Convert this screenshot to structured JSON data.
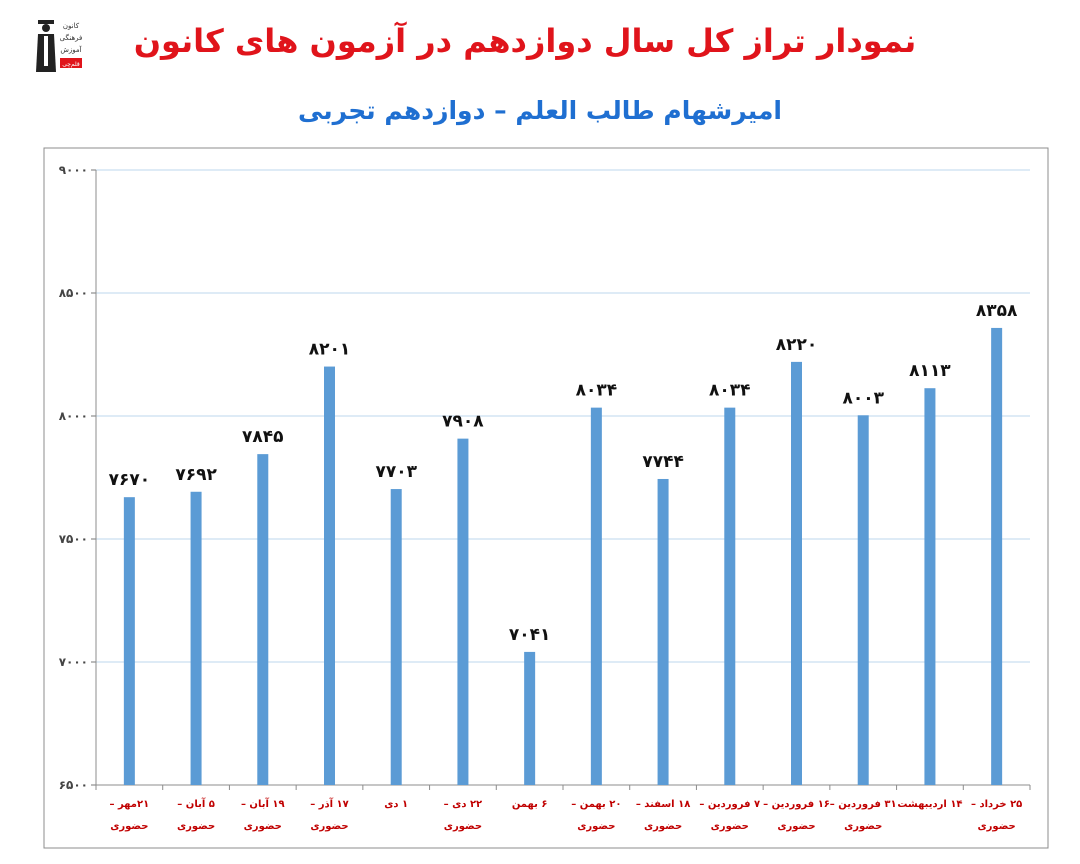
{
  "header": {
    "title": "نمودار تراز کل سال دوازدهم در آزمون های کانون",
    "subtitle": "امیرشهام طالب العلم – دوازدهم تجربی"
  },
  "logo": {
    "icon": "graduate-logo-icon",
    "lines": [
      "کانون",
      "فرهنگی",
      "آموزش"
    ],
    "badge": "قلم‌چی"
  },
  "colors": {
    "title": "#e0141b",
    "subtitle": "#1f6fd1",
    "bar": "#5b9bd5",
    "gridline": "#bdd7ee",
    "category_label": "#c00000"
  },
  "chart_data": {
    "type": "bar",
    "title": "",
    "xlabel": "",
    "ylabel": "",
    "ylim": [
      6500,
      9000
    ],
    "yticks": [
      6500,
      7000,
      7500,
      8000,
      8500,
      9000
    ],
    "ytick_labels": [
      "۶۵۰۰",
      "۷۰۰۰",
      "۷۵۰۰",
      "۸۰۰۰",
      "۸۵۰۰",
      "۹۰۰۰"
    ],
    "grid": true,
    "legend": "none",
    "categories": [
      [
        "۲۱مهر –",
        "حضوری"
      ],
      [
        "۵ آبان –",
        "حضوری"
      ],
      [
        "۱۹ آبان –",
        "حضوری"
      ],
      [
        "۱۷ آذر –",
        "حضوری"
      ],
      [
        "۱ دی",
        ""
      ],
      [
        "۲۲ دی –",
        "حضوری"
      ],
      [
        "۶ بهمن",
        ""
      ],
      [
        "۲۰ بهمن –",
        "حضوری"
      ],
      [
        "۱۸ اسفند –",
        "حضوری"
      ],
      [
        "۷ فروردین –",
        "حضوری"
      ],
      [
        "۱۶ فروردین –",
        "حضوری"
      ],
      [
        "۳۱ فروردین –",
        "حضوری"
      ],
      [
        "۱۴ اردیبهشت",
        ""
      ],
      [
        "۲۵ خرداد –",
        "حضوری"
      ]
    ],
    "values": [
      7670,
      7692,
      7845,
      8201,
      7703,
      7908,
      7041,
      8034,
      7744,
      8034,
      8220,
      8003,
      8113,
      8358
    ],
    "data_labels": [
      "۷۶۷۰",
      "۷۶۹۲",
      "۷۸۴۵",
      "۸۲۰۱",
      "۷۷۰۳",
      "۷۹۰۸",
      "۷۰۴۱",
      "۸۰۳۴",
      "۷۷۴۴",
      "۸۰۳۴",
      "۸۲۲۰",
      "۸۰۰۳",
      "۸۱۱۳",
      "۸۳۵۸"
    ]
  }
}
